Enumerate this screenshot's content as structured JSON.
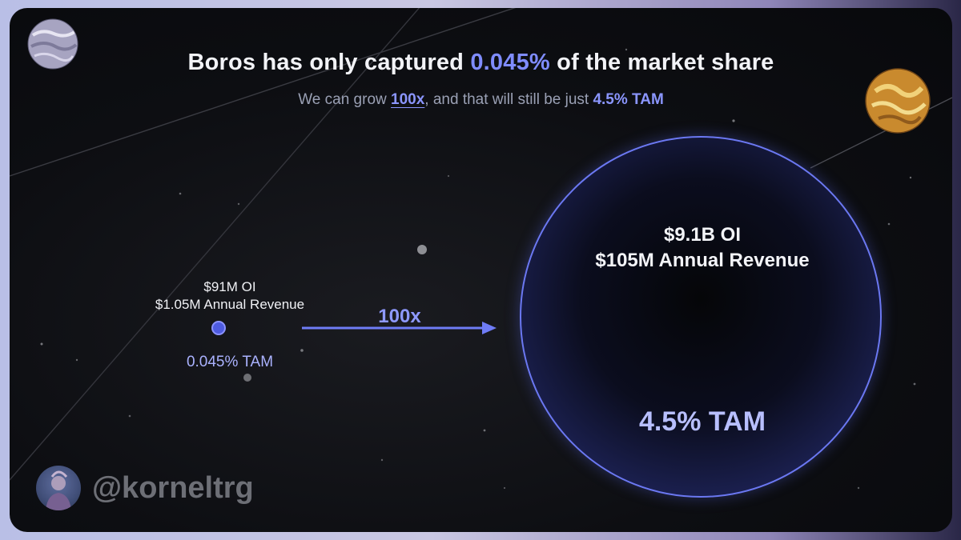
{
  "title": {
    "prefix": "Boros has only captured ",
    "highlight": "0.045%",
    "suffix": " of the market share"
  },
  "subtitle": {
    "prefix": "We can grow ",
    "multiplier": "100x",
    "middle": ", and that will still be just ",
    "tam": "4.5% TAM"
  },
  "small_state": {
    "oi": "$91M OI",
    "revenue": "$1.05M Annual Revenue",
    "tam": "0.045% TAM"
  },
  "arrow": {
    "label": "100x"
  },
  "big_state": {
    "oi": "$9.1B OI",
    "revenue": "$105M Annual Revenue",
    "tam": "4.5% TAM"
  },
  "author": {
    "handle": "@korneltrg"
  },
  "colors": {
    "accent": "#7f8cff",
    "circle_border": "#6b78f2",
    "background": "#0d0e12"
  }
}
